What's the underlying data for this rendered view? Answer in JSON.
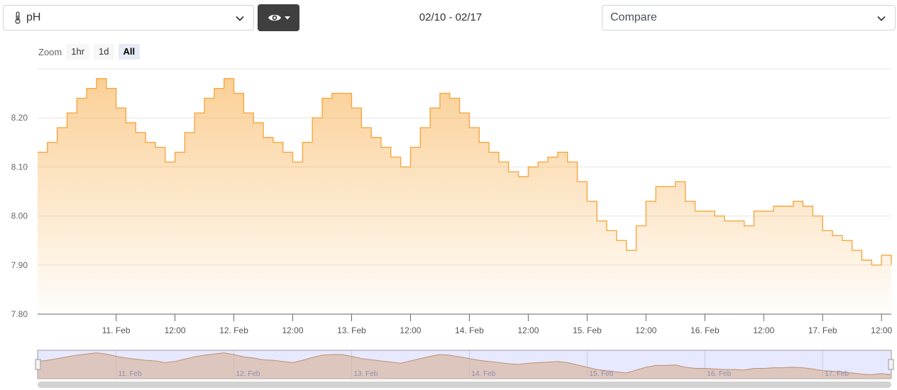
{
  "metric": {
    "label": "pH",
    "icon": "thermometer-icon"
  },
  "view_button": {
    "icon": "eye-icon"
  },
  "date_range": "02/10 - 02/17",
  "compare": {
    "placeholder": "Compare"
  },
  "zoom": {
    "label": "Zoom",
    "buttons": [
      "1hr",
      "1d",
      "All"
    ],
    "active": "All"
  },
  "colors": {
    "line": "#f5a741",
    "navigator_mask": "#ccd3f5",
    "grid": "#e6e6e6"
  },
  "chart_data": {
    "type": "area",
    "title": "",
    "xlabel": "",
    "ylabel": "",
    "ylim": [
      7.8,
      8.3
    ],
    "yticks": [
      "7.80",
      "7.90",
      "8.00",
      "8.10",
      "8.20"
    ],
    "xlim": [
      "02/10 08:00",
      "02/17 14:00"
    ],
    "xticks": [
      "11. Feb",
      "12:00",
      "12. Feb",
      "12:00",
      "13. Feb",
      "12:00",
      "14. Feb",
      "12:00",
      "15. Feb",
      "12:00",
      "16. Feb",
      "12:00",
      "17. Feb",
      "12:00"
    ],
    "navigator_ticks": [
      "11. Feb",
      "12. Feb",
      "13. Feb",
      "14. Feb",
      "15. Feb",
      "16. Feb",
      "17. Feb"
    ],
    "grid": true,
    "legend": "none",
    "series": [
      {
        "x": [
          "02/10 08:00",
          "02/10 10:00",
          "02/10 12:00",
          "02/10 14:00",
          "02/10 16:00",
          "02/10 18:00",
          "02/10 20:00",
          "02/10 22:00",
          "02/11 00:00",
          "02/11 02:00",
          "02/11 04:00",
          "02/11 06:00",
          "02/11 08:00",
          "02/11 10:00",
          "02/11 12:00",
          "02/11 14:00",
          "02/11 16:00",
          "02/11 18:00",
          "02/11 20:00",
          "02/11 22:00",
          "02/12 00:00",
          "02/12 02:00",
          "02/12 04:00",
          "02/12 06:00",
          "02/12 08:00",
          "02/12 10:00",
          "02/12 12:00",
          "02/12 14:00",
          "02/12 16:00",
          "02/12 18:00",
          "02/12 20:00",
          "02/12 22:00",
          "02/13 00:00",
          "02/13 02:00",
          "02/13 04:00",
          "02/13 06:00",
          "02/13 08:00",
          "02/13 10:00",
          "02/13 12:00",
          "02/13 14:00",
          "02/13 16:00",
          "02/13 18:00",
          "02/13 20:00",
          "02/13 22:00",
          "02/14 00:00",
          "02/14 02:00",
          "02/14 04:00",
          "02/14 06:00",
          "02/14 08:00",
          "02/14 10:00",
          "02/14 12:00",
          "02/14 14:00",
          "02/14 16:00",
          "02/14 18:00",
          "02/14 20:00",
          "02/14 22:00",
          "02/15 00:00",
          "02/15 02:00",
          "02/15 04:00",
          "02/15 06:00",
          "02/15 08:00",
          "02/15 10:00",
          "02/15 12:00",
          "02/15 14:00",
          "02/15 16:00",
          "02/15 18:00",
          "02/15 20:00",
          "02/15 22:00",
          "02/16 00:00",
          "02/16 02:00",
          "02/16 04:00",
          "02/16 06:00",
          "02/16 08:00",
          "02/16 10:00",
          "02/16 12:00",
          "02/16 14:00",
          "02/16 16:00",
          "02/16 18:00",
          "02/16 20:00",
          "02/16 22:00",
          "02/17 00:00",
          "02/17 02:00",
          "02/17 04:00",
          "02/17 06:00",
          "02/17 08:00",
          "02/17 10:00",
          "02/17 12:00",
          "02/17 14:00"
        ],
        "values": [
          8.13,
          8.15,
          8.18,
          8.21,
          8.24,
          8.26,
          8.28,
          8.26,
          8.22,
          8.19,
          8.17,
          8.15,
          8.14,
          8.11,
          8.13,
          8.17,
          8.21,
          8.24,
          8.26,
          8.28,
          8.25,
          8.21,
          8.19,
          8.16,
          8.15,
          8.13,
          8.11,
          8.15,
          8.2,
          8.24,
          8.25,
          8.25,
          8.22,
          8.18,
          8.16,
          8.14,
          8.12,
          8.1,
          8.14,
          8.18,
          8.22,
          8.25,
          8.24,
          8.21,
          8.18,
          8.15,
          8.13,
          8.11,
          8.09,
          8.08,
          8.1,
          8.11,
          8.12,
          8.13,
          8.11,
          8.07,
          8.03,
          7.99,
          7.97,
          7.95,
          7.93,
          7.98,
          8.03,
          8.06,
          8.06,
          8.07,
          8.03,
          8.01,
          8.01,
          8.0,
          7.99,
          7.99,
          7.98,
          8.01,
          8.01,
          8.02,
          8.02,
          8.03,
          8.02,
          8.0,
          7.97,
          7.96,
          7.95,
          7.93,
          7.91,
          7.9,
          7.92,
          7.9
        ]
      }
    ]
  }
}
